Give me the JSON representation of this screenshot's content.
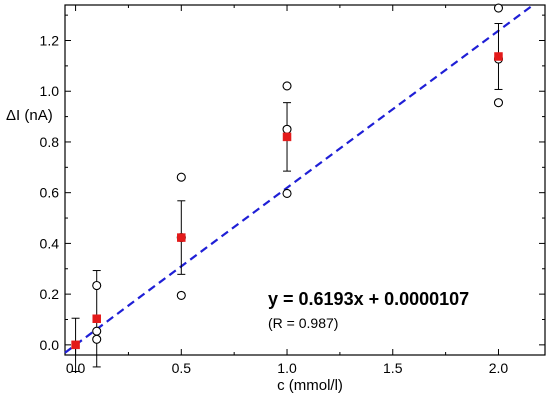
{
  "chart_data": {
    "type": "scatter",
    "xlabel": "c (mmol/l)",
    "ylabel": "ΔI (nA)",
    "xlim": [
      -0.05,
      2.22
    ],
    "ylim": [
      -0.04,
      1.34
    ],
    "x_ticks": [
      0.0,
      0.5,
      1.0,
      1.5,
      2.0
    ],
    "x_tick_labels": [
      "0.0",
      "0.5",
      "1.0",
      "1.5",
      "2.0"
    ],
    "y_ticks": [
      0.0,
      0.2,
      0.4,
      0.6,
      0.8,
      1.0,
      1.2
    ],
    "y_tick_labels": [
      "0.0",
      "0.2",
      "0.4",
      "0.6",
      "0.8",
      "1.0",
      "1.2"
    ],
    "series": [
      {
        "marker": "open-circle",
        "color": "#000000",
        "points": [
          [
            0.1,
            0.234
          ],
          [
            0.1,
            0.054
          ],
          [
            0.1,
            0.022
          ],
          [
            0.5,
            0.661
          ],
          [
            0.5,
            0.423
          ],
          [
            0.5,
            0.195
          ],
          [
            1.0,
            1.021
          ],
          [
            1.0,
            0.85
          ],
          [
            1.0,
            0.597
          ],
          [
            2.0,
            1.328
          ],
          [
            2.0,
            1.127
          ],
          [
            2.0,
            0.955
          ]
        ]
      },
      {
        "marker": "filled-square",
        "color": "#e31a1a",
        "points": [
          [
            0.0,
            0.0
          ],
          [
            0.1,
            0.103
          ],
          [
            0.5,
            0.423
          ],
          [
            1.0,
            0.82
          ],
          [
            2.0,
            1.137
          ]
        ],
        "error_bars": [
          0.105,
          0.19,
          0.145,
          0.135,
          0.13
        ]
      }
    ],
    "fit_line": {
      "slope": 0.6193,
      "intercept": 1.07e-05,
      "color": "#1f1fd6",
      "style": "dashed"
    },
    "annotations": {
      "equation": "y = 0.6193x + 0.0000107",
      "r_value": "(R = 0.987)"
    },
    "grid": false,
    "legend": "none"
  }
}
